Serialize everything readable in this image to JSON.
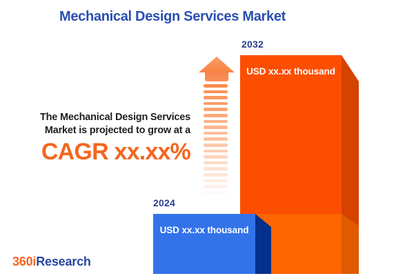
{
  "header": {
    "title": "Mechanical Design Services Market"
  },
  "intro": {
    "line1": "The Mechanical Design Services",
    "line2": "Market is projected to grow at a",
    "cagr_label": "CAGR xx.xx%"
  },
  "chart_data": {
    "type": "bar",
    "title": "Mechanical Design Services Market",
    "categories": [
      "2024",
      "2032"
    ],
    "values": [
      null,
      null
    ],
    "value_labels": [
      "USD xx.xx thousand",
      "USD xx.xx thousand"
    ],
    "annotation": "The Mechanical Design Services Market is projected to grow at a CAGR xx.xx%",
    "legend": "none",
    "grid": false,
    "bar_colors": {
      "bar_2024_face": "#3373EA",
      "bar_2024_side": "#05308C",
      "bar_2032_face": "#FC4E00",
      "bar_2032_side": "#D64200",
      "bar_2032_lower_face": "#FD6500",
      "bar_2032_lower_side": "#E05A00"
    }
  },
  "arrow": {
    "stripe_count": 19,
    "color": "#FB8C4E"
  },
  "logo": {
    "part1": "360i",
    "part2": "Research"
  },
  "colors": {
    "title_blue": "#2A4FB0",
    "year_label_navy": "#2B3D8F",
    "body_text": "#1E1E1E",
    "cagr_orange": "#F4661F",
    "logo_orange": "#F26522",
    "logo_blue": "#27489F"
  }
}
